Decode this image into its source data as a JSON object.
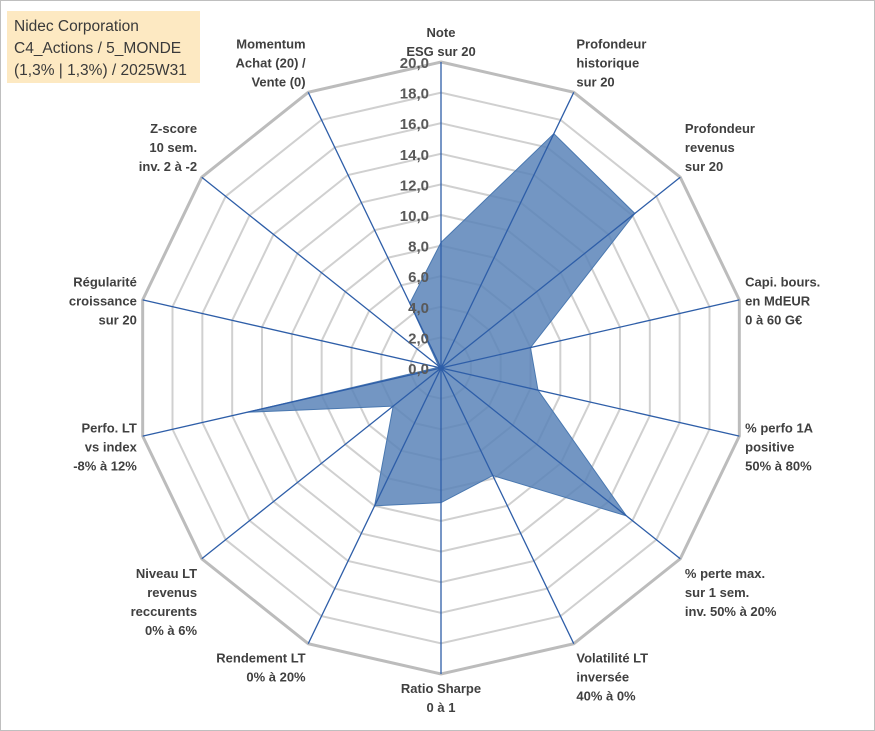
{
  "header": {
    "company": "Nidec Corporation",
    "subtitle": "C4_Actions / 5_MONDE",
    "detail": "(1,3% | 1,3%) / 2025W31"
  },
  "chart_data": {
    "type": "radar",
    "rmin": 0,
    "rmax": 20,
    "tick_step": 2,
    "tick_labels": [
      "0,0",
      "2,0",
      "4,0",
      "6,0",
      "8,0",
      "10,0",
      "12,0",
      "14,0",
      "16,0",
      "18,0",
      "20,0"
    ],
    "grid": true,
    "axes": [
      {
        "label": [
          "Note",
          "ESG sur 20"
        ],
        "value": 8.2
      },
      {
        "label": [
          "Profondeur",
          "historique",
          "sur 20"
        ],
        "value": 17.0
      },
      {
        "label": [
          "Profondeur",
          "revenus",
          "sur 20"
        ],
        "value": 16.2
      },
      {
        "label": [
          "Capi. bours.",
          "en MdEUR",
          "0 à 60 G€"
        ],
        "value": 6.0
      },
      {
        "label": [
          "% perfo 1A",
          "positive",
          "50% à 80%"
        ],
        "value": 6.5
      },
      {
        "label": [
          "% perte max.",
          "sur 1 sem.",
          "inv. 50% à 20%"
        ],
        "value": 15.5
      },
      {
        "label": [
          "Volatilité LT",
          "inversée",
          "40% à 0%"
        ],
        "value": 7.8
      },
      {
        "label": [
          "Ratio Sharpe",
          "0 à 1"
        ],
        "value": 8.8
      },
      {
        "label": [
          "Rendement LT",
          "0% à 20%"
        ],
        "value": 10.0
      },
      {
        "label": [
          "Niveau LT",
          "revenus",
          "reccurents",
          "0% à 6%"
        ],
        "value": 4.0
      },
      {
        "label": [
          "Perfo. LT",
          "vs index",
          "-8% à 12%"
        ],
        "value": 13.0
      },
      {
        "label": [
          "Régularité",
          "croissance",
          "sur 20"
        ],
        "value": 0.2
      },
      {
        "label": [
          "Z-score",
          "10 sem.",
          "inv. 2 à -2"
        ],
        "value": 0.2
      },
      {
        "label": [
          "Momentum",
          "Achat (20) /",
          "Vente (0)"
        ],
        "value": 4.7
      }
    ],
    "colors": {
      "fill": "#5b84b8",
      "edge": "#4a78b0",
      "spoke": "#2e5ea8",
      "grid": "#d0d0d0",
      "outer": "#bcbcbc"
    }
  }
}
